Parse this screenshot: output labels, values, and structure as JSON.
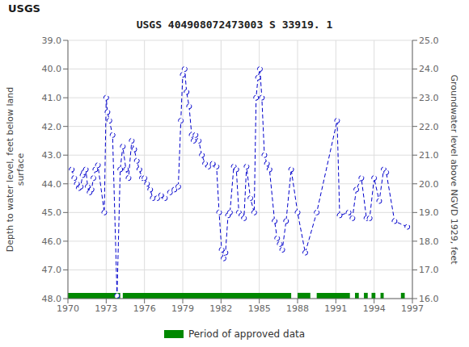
{
  "chart_data": {
    "type": "line",
    "title": "USGS 404908072473003 S 33919. 1",
    "annotations": [
      "USGS"
    ],
    "ylabel": "Depth to water level, feet below land\nsurface",
    "y2label": "Groundwater level above NGVD 1929, feet",
    "xlim": [
      1970,
      1997
    ],
    "xticks": [
      1970,
      1973,
      1976,
      1979,
      1982,
      1985,
      1988,
      1991,
      1994,
      1997
    ],
    "ylim": [
      48.0,
      39.0
    ],
    "yticks": [
      {
        "value": 39.0,
        "label": "39.0"
      },
      {
        "value": 40.0,
        "label": "40.0"
      },
      {
        "value": 41.0,
        "label": "41.0"
      },
      {
        "value": 42.0,
        "label": "42.0"
      },
      {
        "value": 43.0,
        "label": "43.0"
      },
      {
        "value": 44.0,
        "label": "44.0"
      },
      {
        "value": 45.0,
        "label": "45.0"
      },
      {
        "value": 46.0,
        "label": "46.0"
      },
      {
        "value": 47.0,
        "label": "47.0"
      },
      {
        "value": 48.0,
        "label": "48.0"
      }
    ],
    "y2lim": [
      16.0,
      25.0
    ],
    "y2ticks": [
      {
        "value": 16.0,
        "label": "16.0"
      },
      {
        "value": 17.0,
        "label": "17.0"
      },
      {
        "value": 18.0,
        "label": "18.0"
      },
      {
        "value": 19.0,
        "label": "19.0"
      },
      {
        "value": 20.0,
        "label": "20.0"
      },
      {
        "value": 21.0,
        "label": "21.0"
      },
      {
        "value": 22.0,
        "label": "22.0"
      },
      {
        "value": 23.0,
        "label": "23.0"
      },
      {
        "value": 24.0,
        "label": "24.0"
      },
      {
        "value": 25.0,
        "label": "25.0"
      }
    ],
    "grid": true,
    "legend": "bottom",
    "x": [
      1970.3,
      1970.5,
      1970.7,
      1970.85,
      1971.0,
      1971.15,
      1971.25,
      1971.4,
      1971.55,
      1971.7,
      1971.85,
      1972.0,
      1972.15,
      1972.35,
      1972.85,
      1973.0,
      1973.1,
      1973.25,
      1973.5,
      1973.85,
      1974.1,
      1974.3,
      1974.55,
      1974.75,
      1975.0,
      1975.2,
      1975.4,
      1975.6,
      1975.8,
      1976.0,
      1976.2,
      1976.45,
      1976.65,
      1977.0,
      1977.3,
      1977.6,
      1978.0,
      1978.35,
      1978.65,
      1978.85,
      1979.0,
      1979.15,
      1979.3,
      1979.5,
      1979.7,
      1979.85,
      1980.0,
      1980.25,
      1980.5,
      1980.75,
      1981.0,
      1981.35,
      1981.65,
      1981.85,
      1982.05,
      1982.2,
      1982.35,
      1982.55,
      1982.7,
      1983.0,
      1983.2,
      1983.4,
      1983.6,
      1983.8,
      1984.0,
      1984.3,
      1984.6,
      1984.75,
      1984.9,
      1985.05,
      1985.2,
      1985.4,
      1985.6,
      1985.8,
      1986.2,
      1986.4,
      1986.6,
      1986.8,
      1987.1,
      1987.5,
      1988.0,
      1988.6,
      1989.5,
      1991.1,
      1991.3,
      1992.0,
      1992.3,
      1992.6,
      1993.0,
      1993.4,
      1993.65,
      1994.0,
      1994.4,
      1994.75,
      1994.95,
      1995.6,
      1996.6
    ],
    "values": [
      43.5,
      43.8,
      44.0,
      44.15,
      44.1,
      43.7,
      43.6,
      43.5,
      44.1,
      44.3,
      44.2,
      43.8,
      43.5,
      43.35,
      45.0,
      41.0,
      41.5,
      41.8,
      42.3,
      47.9,
      43.5,
      42.7,
      43.5,
      43.8,
      42.5,
      42.8,
      43.2,
      43.5,
      43.8,
      43.8,
      44.0,
      44.2,
      44.5,
      44.5,
      44.4,
      44.5,
      44.3,
      44.2,
      44.1,
      41.8,
      40.2,
      40.0,
      40.8,
      41.3,
      42.3,
      42.5,
      42.3,
      42.5,
      43.0,
      43.3,
      43.4,
      43.3,
      43.4,
      45.0,
      46.3,
      46.6,
      46.4,
      45.1,
      45.0,
      43.4,
      43.5,
      45.0,
      45.1,
      45.2,
      43.4,
      44.5,
      45.0,
      41.0,
      40.3,
      40.0,
      41.0,
      43.0,
      43.3,
      43.5,
      45.3,
      45.9,
      46.1,
      46.3,
      45.3,
      43.5,
      45.0,
      46.4,
      45.0,
      41.8,
      45.1,
      45.0,
      45.2,
      44.2,
      43.8,
      45.2,
      45.2,
      43.8,
      44.6,
      43.5,
      43.6,
      45.3,
      45.5
    ],
    "color": "#0000cc",
    "line_style": "dashed",
    "marker": "circle",
    "approved_periods": {
      "name": "Period of approved data",
      "color": "#008800",
      "segments": [
        [
          1970.0,
          1974.1
        ],
        [
          1974.3,
          1987.5
        ],
        [
          1988.0,
          1989.0
        ],
        [
          1989.5,
          1992.1
        ],
        [
          1992.5,
          1992.8
        ],
        [
          1993.2,
          1993.5
        ],
        [
          1993.8,
          1994.1
        ],
        [
          1994.5,
          1994.75
        ],
        [
          1996.1,
          1996.4
        ]
      ],
      "band": [
        47.8,
        48.0
      ]
    }
  }
}
